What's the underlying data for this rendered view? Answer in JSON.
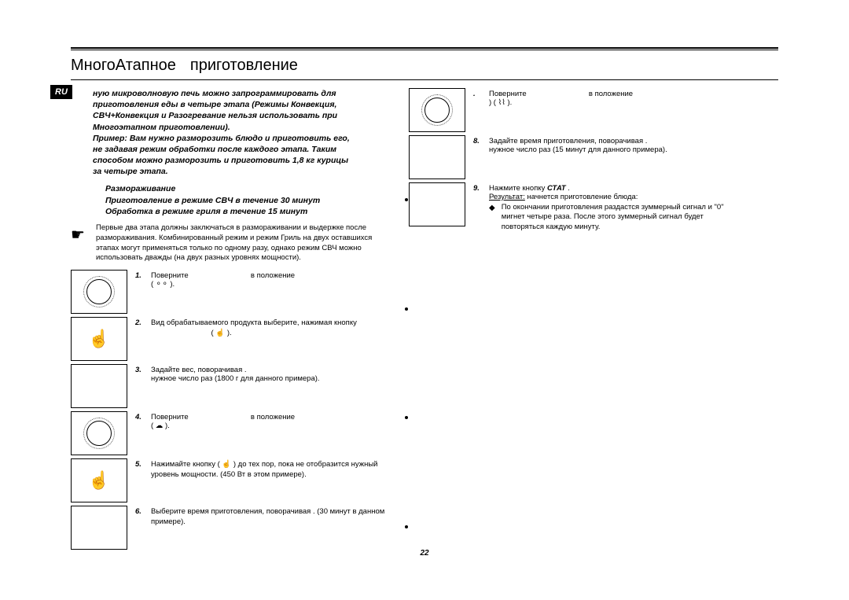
{
  "lang_tag": "RU",
  "title_part1": "МногоАтапное",
  "title_part2": "приготовление",
  "intro": {
    "line1": "ную микроволновую печь можно запрограммировать для",
    "line2": "приготовления еды в четыре этапа (Режимы Конвекция,",
    "line3": "СВЧ+Конвекция и Разогревание нельзя использовать при",
    "line4": "Многоэтапном приготовлении).",
    "ex_label": "Пример:",
    "ex_line1": "Вам нужно разморозить блюдо и приготовить его,",
    "ex_line2": "не задавая режим обработки после каждого этапа. Таким",
    "ex_line3": "способом можно разморозить и приготовить 1,8 кг курицы",
    "ex_line4": "за четыре этапа.",
    "d1": "Размораживание",
    "d2": "Приготовление в режиме СВЧ в течение 30 минут",
    "d3": "Обработка в режиме гриля в течение 15 минут"
  },
  "hand_note": "Первые два этапа должны заключаться в размораживании и выдержке после размораживания. Комбинированный режим и режим Гриль на двух оставшихся этапах могут применяться только по одному разу, однако режим СВЧ можно использовать дважды (на двух разных уровнях мощности).",
  "steps_left": [
    {
      "n": "1.",
      "text": "Поверните",
      "tail": "в положение",
      "sub": "(  ⚬⚬  ).",
      "thumb": "dial"
    },
    {
      "n": "2.",
      "text": "Вид обрабатываемого продукта выберите, нажимая кнопку",
      "tail": "( ☝ ).",
      "thumb": "touch"
    },
    {
      "n": "3.",
      "text": "Задайте вес, поворачивая .",
      "sub2": "нужное число раз (1800 г для данного примера).",
      "thumb": "blank"
    },
    {
      "n": "4.",
      "text": "Поверните",
      "tail": "в положение",
      "sub": "( ☁ ).",
      "thumb": "dial"
    },
    {
      "n": "5.",
      "text": "Нажимайте кнопку          ( ☝ ) до тех пор, пока не отобразится нужный уровень мощности. (450 Вт в этом примере).",
      "thumb": "touch"
    },
    {
      "n": "6.",
      "text": "Выберите время приготовления, поворачивая .                              (30 минут в данном примере).",
      "thumb": "blank"
    }
  ],
  "steps_right": [
    {
      "n": ".",
      "text": "Поверните",
      "tail": "в положение",
      "sub": ")       ( ⌇⌇ ).",
      "thumb": "dial"
    },
    {
      "n": "8.",
      "text": "Задайте время приготовления, поворачивая .",
      "sub2": "нужное          число раз (15 минут для данного примера).",
      "thumb": "blank"
    },
    {
      "n": "9.",
      "text_pre": "Нажмите кнопку ",
      "btn": "СТАТ",
      "text_post": "   .",
      "result_label": "Результат:",
      "result_text": "начнется приготовление блюда:",
      "bullet": "По окончании приготовления раздастся зуммерный сигнал и \"0\" мигнет четыре раза. После этого зуммерный сигнал будет повторяться каждую минуту.",
      "thumb": "blank"
    }
  ],
  "page_number": "22",
  "colors": {
    "text": "#000000",
    "background": "#ffffff",
    "tag_bg": "#000000",
    "tag_fg": "#ffffff"
  }
}
